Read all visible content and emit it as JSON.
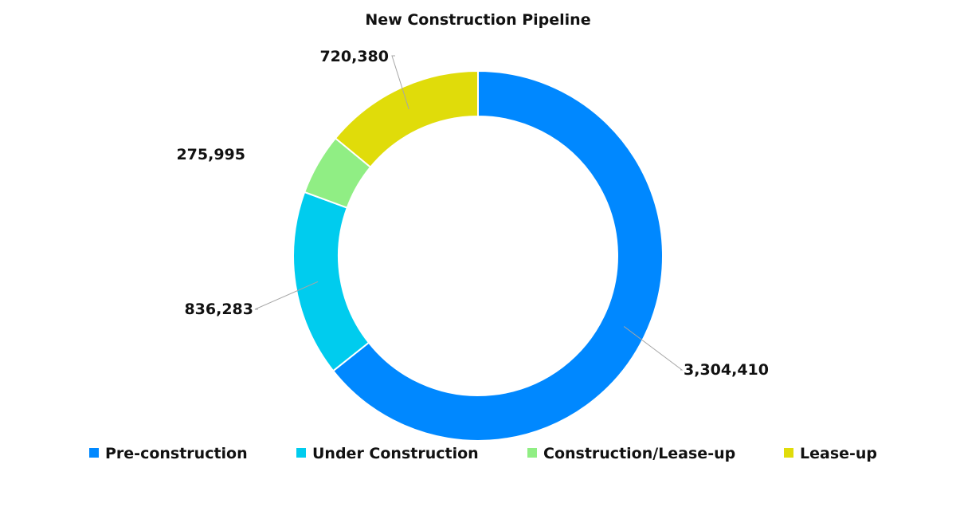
{
  "chart_data": {
    "type": "pie",
    "variant": "donut",
    "title": "New Construction Pipeline",
    "categories": [
      "Pre-construction",
      "Under Construction",
      "Construction/Lease-up",
      "Lease-up"
    ],
    "values": [
      3304410,
      836283,
      275995,
      720380
    ],
    "value_labels": [
      "3,304,410",
      "836,283",
      "275,995",
      "720,380"
    ],
    "colors": [
      "#0088FF",
      "#00CCEE",
      "#90EE84",
      "#E0DC0A"
    ],
    "legend_position": "bottom"
  }
}
